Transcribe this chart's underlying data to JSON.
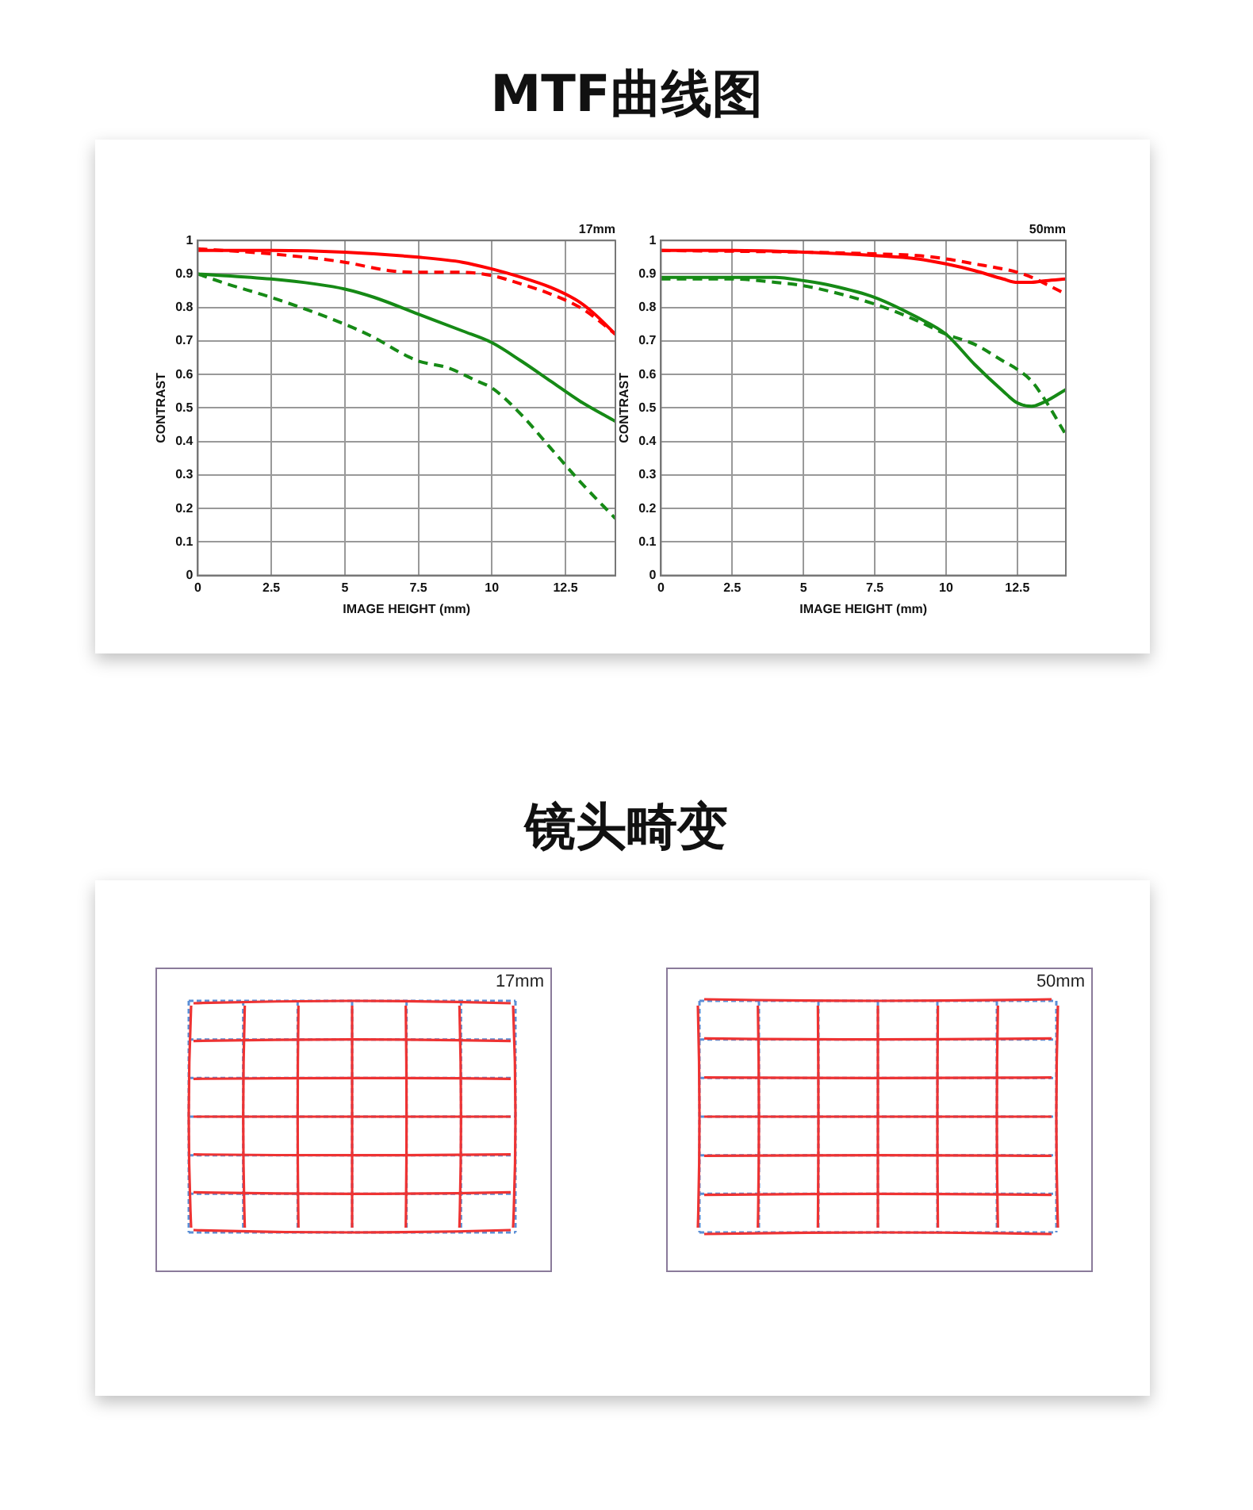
{
  "chart_data": [
    {
      "type": "line",
      "title": "MTF曲线图",
      "subtitle": "17mm",
      "xlabel": "IMAGE HEIGHT (mm)",
      "ylabel": "CONTRAST",
      "xlim": [
        0,
        14.2
      ],
      "xticks": [
        0,
        2.5,
        5,
        7.5,
        10,
        12.5
      ],
      "ylim": [
        0,
        1
      ],
      "yticks": [
        0,
        0.1,
        0.2,
        0.3,
        0.4,
        0.5,
        0.6,
        0.7,
        0.8,
        0.9,
        1
      ],
      "grid": true,
      "legend": false,
      "marker": "none",
      "series": [
        {
          "color": "#ff0000",
          "line_style": "solid",
          "x": [
            0,
            2.5,
            5,
            7.5,
            9,
            10,
            11,
            12,
            12.5,
            13,
            13.5,
            14.2
          ],
          "values": [
            0.97,
            0.97,
            0.965,
            0.95,
            0.935,
            0.915,
            0.89,
            0.86,
            0.84,
            0.815,
            0.78,
            0.72
          ]
        },
        {
          "color": "#ff0000",
          "line_style": "dashed",
          "x": [
            0,
            2.5,
            5,
            6.5,
            7.5,
            9,
            10,
            11,
            12,
            13,
            13.5,
            14.2
          ],
          "values": [
            0.975,
            0.96,
            0.935,
            0.91,
            0.905,
            0.905,
            0.895,
            0.87,
            0.84,
            0.8,
            0.77,
            0.72
          ]
        },
        {
          "color": "#168a16",
          "line_style": "solid",
          "x": [
            0,
            2.5,
            4,
            5,
            6,
            7.5,
            9,
            10,
            11,
            12,
            13,
            14.2
          ],
          "values": [
            0.9,
            0.885,
            0.87,
            0.855,
            0.83,
            0.78,
            0.73,
            0.695,
            0.64,
            0.58,
            0.52,
            0.46
          ]
        },
        {
          "color": "#168a16",
          "line_style": "dashed",
          "x": [
            0,
            1,
            2.5,
            5,
            6,
            7,
            7.5,
            8.5,
            9.5,
            10,
            11,
            12,
            13,
            14.2
          ],
          "values": [
            0.9,
            0.87,
            0.83,
            0.75,
            0.71,
            0.66,
            0.64,
            0.62,
            0.58,
            0.56,
            0.48,
            0.38,
            0.28,
            0.17
          ]
        }
      ]
    },
    {
      "type": "line",
      "subtitle": "50mm",
      "xlabel": "IMAGE HEIGHT (mm)",
      "ylabel": "CONTRAST",
      "xlim": [
        0,
        14.2
      ],
      "xticks": [
        0,
        2.5,
        5,
        7.5,
        10,
        12.5
      ],
      "ylim": [
        0,
        1
      ],
      "yticks": [
        0,
        0.1,
        0.2,
        0.3,
        0.4,
        0.5,
        0.6,
        0.7,
        0.8,
        0.9,
        1
      ],
      "grid": true,
      "legend": false,
      "marker": "none",
      "series": [
        {
          "color": "#ff0000",
          "line_style": "solid",
          "x": [
            0,
            2.5,
            5,
            7.5,
            9,
            10,
            11,
            12,
            12.5,
            13,
            13.5,
            14.2
          ],
          "values": [
            0.97,
            0.97,
            0.965,
            0.955,
            0.945,
            0.93,
            0.91,
            0.885,
            0.875,
            0.875,
            0.88,
            0.885
          ]
        },
        {
          "color": "#ff0000",
          "line_style": "dashed",
          "x": [
            0,
            5,
            7.5,
            9,
            10,
            11,
            12,
            12.5,
            13,
            13.5,
            14.2
          ],
          "values": [
            0.97,
            0.965,
            0.96,
            0.955,
            0.945,
            0.93,
            0.915,
            0.905,
            0.89,
            0.87,
            0.84
          ]
        },
        {
          "color": "#168a16",
          "line_style": "solid",
          "x": [
            0,
            2.5,
            4,
            5,
            6,
            7.5,
            9,
            10,
            11,
            12,
            12.5,
            13,
            13.5,
            14.2
          ],
          "values": [
            0.89,
            0.89,
            0.89,
            0.88,
            0.865,
            0.83,
            0.77,
            0.72,
            0.63,
            0.55,
            0.515,
            0.505,
            0.52,
            0.555
          ]
        },
        {
          "color": "#168a16",
          "line_style": "dashed",
          "x": [
            0,
            2.5,
            4,
            5,
            7.5,
            9,
            10,
            11,
            12,
            12.5,
            13,
            13.5,
            14.2
          ],
          "values": [
            0.885,
            0.885,
            0.875,
            0.865,
            0.81,
            0.76,
            0.72,
            0.69,
            0.64,
            0.615,
            0.58,
            0.52,
            0.42
          ]
        }
      ]
    },
    {
      "type": "other",
      "title": "镜头畸变",
      "annotations": [
        "17mm",
        "50mm"
      ]
    }
  ]
}
